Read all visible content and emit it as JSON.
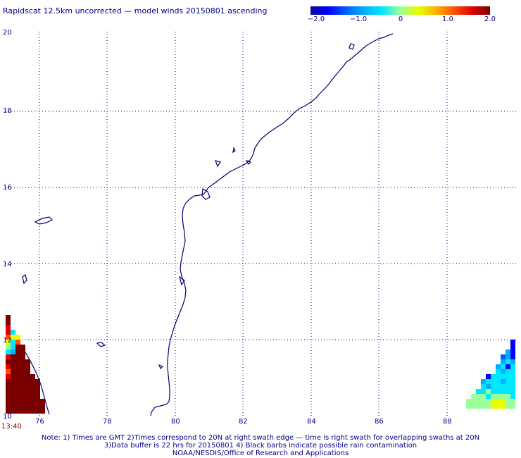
{
  "title": "Rapidscat 12.5km uncorrected — model winds 20150801 ascending",
  "colorbar": {
    "labels": [
      "−2.0",
      "−1.0",
      "0",
      "1.0",
      "2.0"
    ],
    "range": [
      -2.0,
      2.0
    ]
  },
  "axes": {
    "lon_ticks": [
      "76",
      "78",
      "80",
      "82",
      "84",
      "86",
      "88"
    ],
    "lat_ticks": [
      "20",
      "18",
      "16",
      "14",
      "12",
      "10"
    ],
    "lon_range": [
      75.0,
      90.0
    ],
    "lat_range": [
      10.0,
      20.0
    ],
    "grid": "dotted"
  },
  "time_label": "13:40",
  "notes": [
    "Note: 1) Times are GMT 2)Times correspond to 20N at right swath edge — time is right swath for overlapping swaths at 20N",
    "3)Data buffer is 22 hrs for 20150801 4) Black barbs indicate possible rain contamination",
    "NOAA/NESDIS/Office of Research and Applications"
  ],
  "colors": {
    "text": "#00008b",
    "coastline": "#00006e",
    "grid": "#00008b",
    "time": "#8b0000"
  }
}
